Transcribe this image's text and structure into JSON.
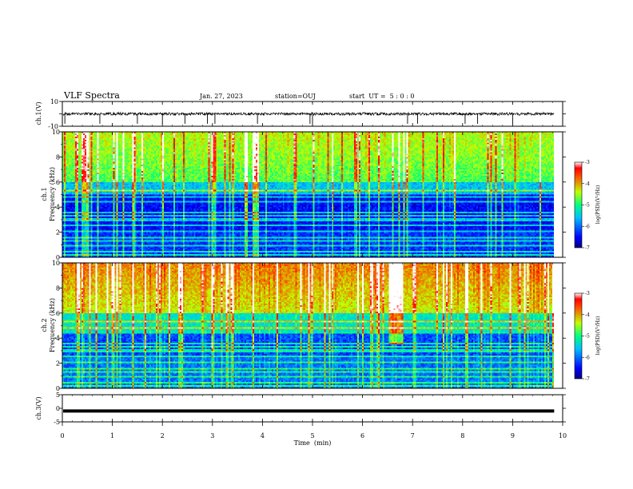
{
  "header": {
    "title": "VLF Spectra",
    "date": "Jan. 27, 2023",
    "station": "station=OUJ",
    "start": "start  UT =  5 : 0 : 0"
  },
  "chart_data": [
    {
      "type": "line",
      "id": "ch1-waveform",
      "ylabel": "ch.1(V)",
      "ylim": [
        -10,
        10
      ],
      "yticks": [
        "10",
        "-10"
      ],
      "xlim": [
        0,
        10
      ],
      "baseline": 0,
      "dropouts_min": [
        0.05,
        0.75,
        1.5,
        2.0,
        2.45,
        2.9,
        3.05,
        3.9,
        4.95,
        5.0,
        6.9,
        7.1,
        8.05,
        8.3,
        9.0
      ]
    },
    {
      "type": "heatmap",
      "id": "ch1-spectrogram",
      "ylabel": "ch.1\nFrequency  (kHz)",
      "xlim": [
        0,
        10
      ],
      "data_xmax": 9.83,
      "ylim": [
        0,
        10
      ],
      "yticks": [
        "0",
        "2",
        "4",
        "6",
        "8",
        "10"
      ],
      "colorbar": {
        "label": "log(PSD)(V²/Hz)",
        "range": [
          -7,
          -3
        ],
        "ticks": [
          "-3",
          "-4",
          "-5",
          "-6",
          "-7"
        ]
      }
    },
    {
      "type": "heatmap",
      "id": "ch2-spectrogram",
      "ylabel": "ch.2\nFrequency  (kHz)",
      "xlim": [
        0,
        10
      ],
      "data_xmax": 9.83,
      "ylim": [
        0,
        10
      ],
      "yticks": [
        "0",
        "2",
        "4",
        "6",
        "8",
        "10"
      ],
      "colorbar": {
        "label": "log(PSD)(V²/Hz)",
        "range": [
          -7,
          -3
        ],
        "ticks": [
          "-3",
          "-4",
          "-5",
          "-6",
          "-7"
        ]
      }
    },
    {
      "type": "line",
      "id": "ch3-waveform",
      "ylabel": "ch.3(V)",
      "ylim": [
        -5,
        5
      ],
      "yticks": [
        "5",
        "0",
        "-5"
      ],
      "xlim": [
        0,
        10
      ],
      "data_xmax": 9.83,
      "value": -1
    }
  ],
  "xaxis": {
    "label": "Time  (min)",
    "ticks": [
      "0",
      "1",
      "2",
      "3",
      "4",
      "5",
      "6",
      "7",
      "8",
      "9",
      "10"
    ]
  }
}
